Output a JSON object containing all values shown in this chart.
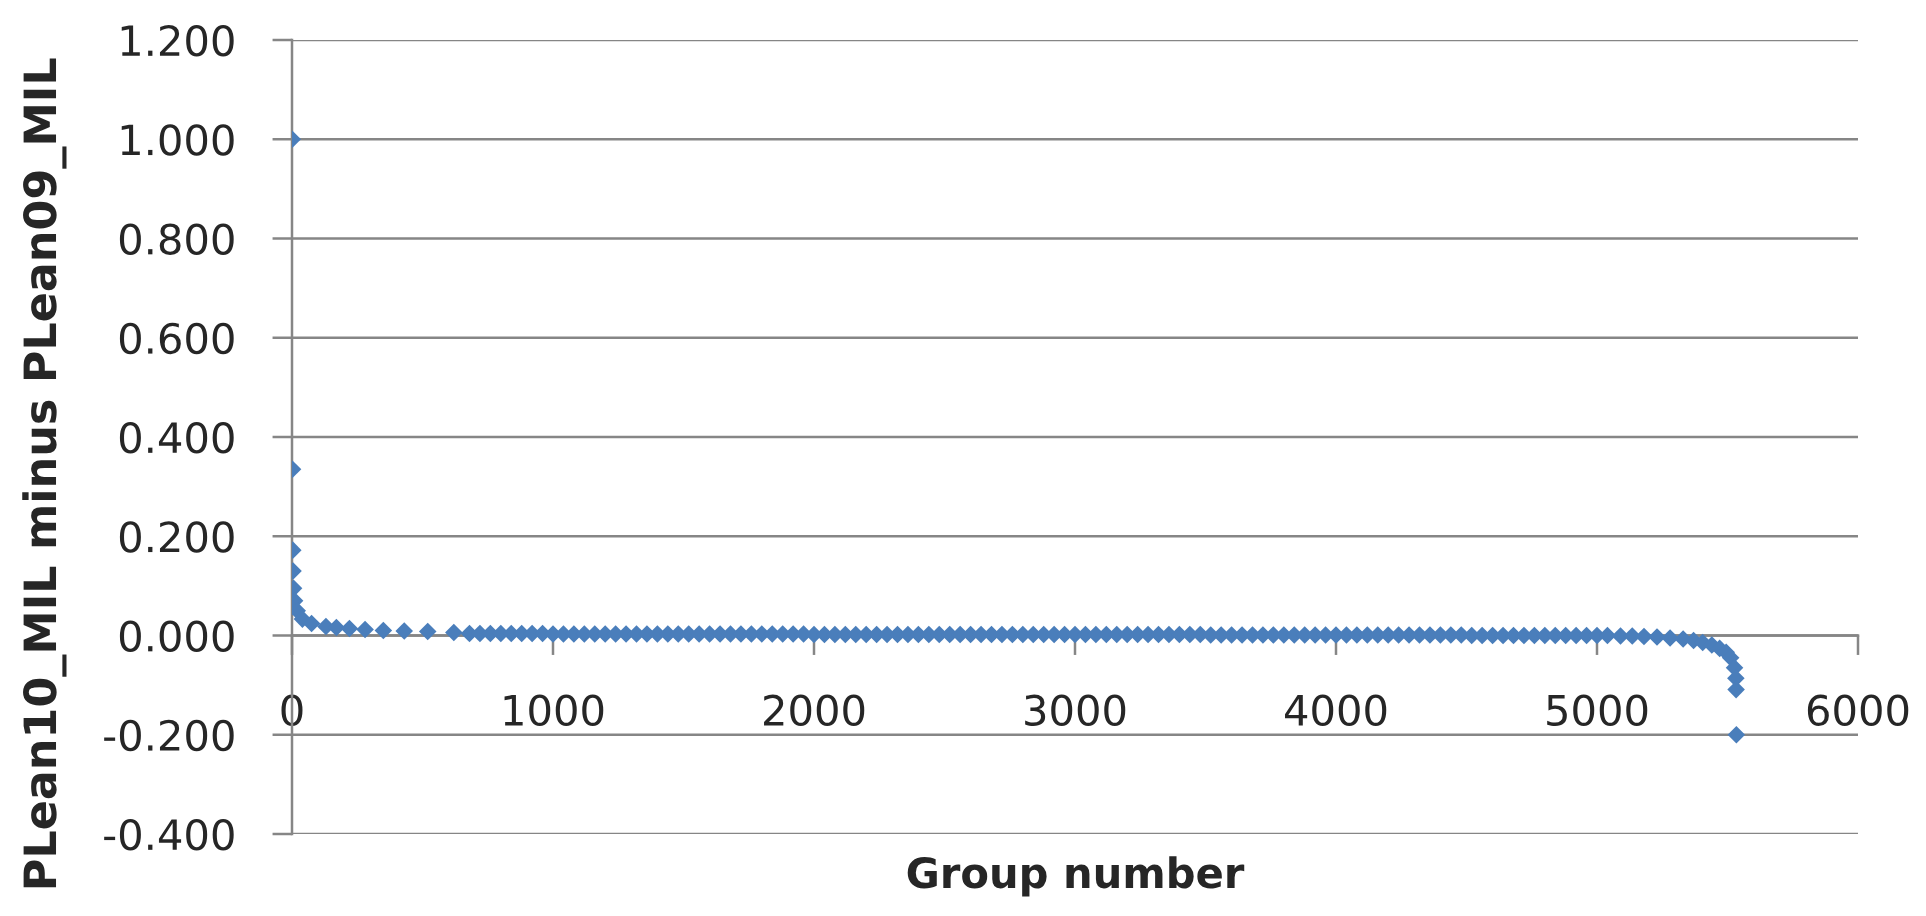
{
  "chart_data": {
    "type": "scatter",
    "xlabel": "Group number",
    "ylabel": "PLean10_MIL minus PLean09_MIL",
    "xlim": [
      0,
      6000
    ],
    "xticks": [
      0,
      1000,
      2000,
      3000,
      4000,
      5000,
      6000
    ],
    "ylim": [
      -0.4,
      1.2
    ],
    "yticks": [
      {
        "value": -0.4,
        "label": "-0.400"
      },
      {
        "value": -0.2,
        "label": "-0.200"
      },
      {
        "value": 0,
        "label": "0.000"
      },
      {
        "value": 0.2,
        "label": "0.200"
      },
      {
        "value": 0.4,
        "label": "0.400"
      },
      {
        "value": 0.6,
        "label": "0.600"
      },
      {
        "value": 0.8,
        "label": "0.800"
      },
      {
        "value": 1.0,
        "label": "1.000"
      },
      {
        "value": 1.2,
        "label": "1.200"
      }
    ],
    "grid": "y",
    "marker": "diamond",
    "series": [
      {
        "color": "#4a7ebb",
        "x": [
          1,
          2,
          3,
          4,
          6,
          10,
          20,
          40,
          75,
          130,
          170,
          220,
          280,
          350,
          430,
          520,
          620,
          680,
          720,
          760,
          800,
          840,
          880,
          920,
          960,
          1000,
          1040,
          1080,
          1120,
          1160,
          1200,
          1240,
          1280,
          1320,
          1360,
          1400,
          1440,
          1480,
          1520,
          1560,
          1600,
          1640,
          1680,
          1720,
          1760,
          1800,
          1840,
          1880,
          1920,
          1960,
          2000,
          2040,
          2080,
          2120,
          2160,
          2200,
          2240,
          2280,
          2320,
          2360,
          2400,
          2440,
          2480,
          2520,
          2560,
          2600,
          2640,
          2680,
          2720,
          2760,
          2800,
          2840,
          2880,
          2920,
          2960,
          3000,
          3040,
          3080,
          3120,
          3160,
          3200,
          3240,
          3280,
          3320,
          3360,
          3400,
          3440,
          3480,
          3520,
          3560,
          3600,
          3640,
          3680,
          3720,
          3760,
          3800,
          3840,
          3880,
          3920,
          3960,
          4000,
          4040,
          4080,
          4120,
          4160,
          4200,
          4240,
          4280,
          4320,
          4360,
          4400,
          4440,
          4480,
          4520,
          4560,
          4600,
          4640,
          4680,
          4720,
          4760,
          4800,
          4840,
          4880,
          4920,
          4960,
          5000,
          5040,
          5090,
          5135,
          5180,
          5230,
          5280,
          5330,
          5370,
          5405,
          5440,
          5470,
          5495,
          5512,
          5527,
          5532,
          5533,
          5534
        ],
        "values": [
          1.0,
          0.335,
          0.172,
          0.13,
          0.095,
          0.07,
          0.05,
          0.033,
          0.024,
          0.018,
          0.016,
          0.014,
          0.012,
          0.01,
          0.009,
          0.008,
          0.006,
          0.004,
          0.004,
          0.004,
          0.004,
          0.004,
          0.004,
          0.004,
          0.004,
          0.003,
          0.003,
          0.003,
          0.003,
          0.003,
          0.003,
          0.003,
          0.003,
          0.003,
          0.003,
          0.003,
          0.003,
          0.003,
          0.003,
          0.003,
          0.003,
          0.003,
          0.003,
          0.003,
          0.003,
          0.003,
          0.003,
          0.003,
          0.003,
          0.003,
          0.002,
          0.002,
          0.002,
          0.002,
          0.002,
          0.002,
          0.002,
          0.002,
          0.002,
          0.002,
          0.002,
          0.002,
          0.002,
          0.002,
          0.002,
          0.002,
          0.002,
          0.002,
          0.002,
          0.002,
          0.002,
          0.002,
          0.002,
          0.002,
          0.002,
          0.002,
          0.002,
          0.002,
          0.002,
          0.002,
          0.002,
          0.002,
          0.002,
          0.002,
          0.002,
          0.002,
          0.002,
          0.002,
          0.001,
          0.001,
          0.001,
          0.001,
          0.001,
          0.001,
          0.001,
          0.001,
          0.001,
          0.001,
          0.001,
          0.001,
          0.001,
          0.001,
          0.001,
          0.001,
          0.001,
          0.001,
          0.001,
          0.001,
          0.001,
          0.001,
          0.001,
          0.001,
          0.001,
          0.0,
          0.0,
          0.0,
          0.0,
          0.0,
          0.0,
          0.0,
          0.0,
          0.0,
          0.0,
          0.0,
          0.0,
          0.0,
          0.0,
          -0.001,
          -0.001,
          -0.002,
          -0.003,
          -0.005,
          -0.007,
          -0.01,
          -0.014,
          -0.019,
          -0.026,
          -0.034,
          -0.045,
          -0.065,
          -0.086,
          -0.109,
          -0.2
        ]
      }
    ]
  }
}
